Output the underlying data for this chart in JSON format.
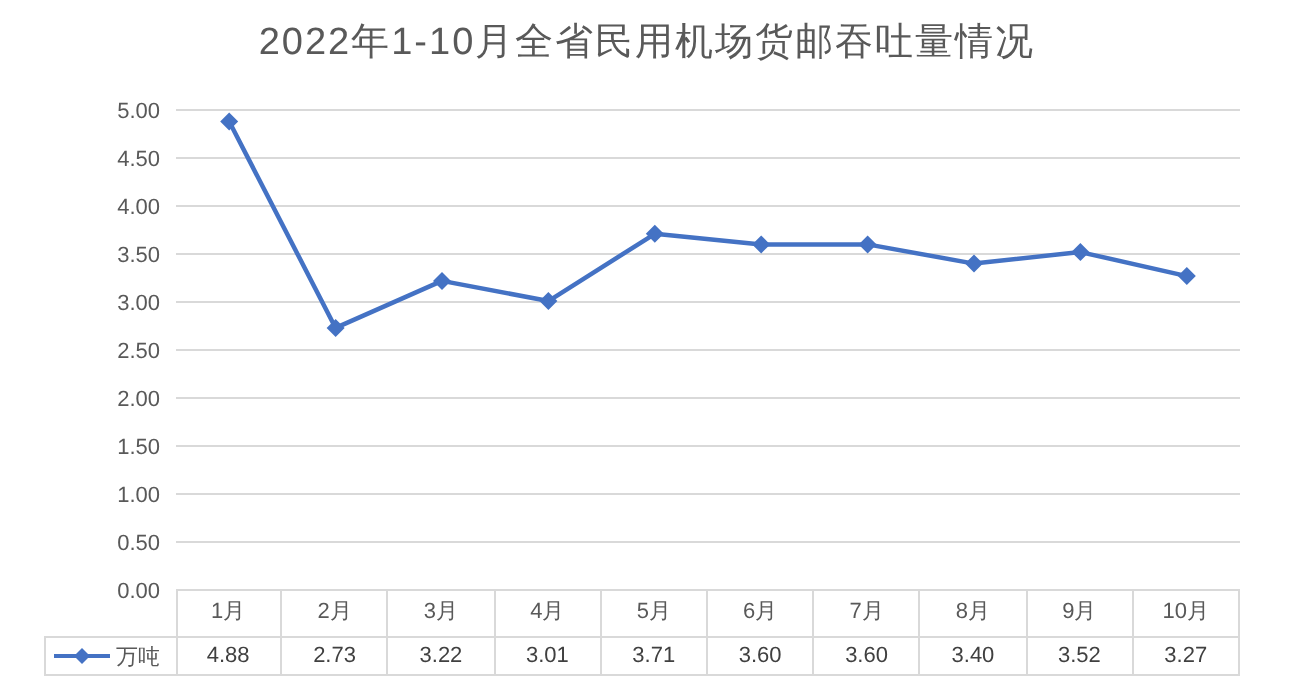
{
  "chart_data": {
    "type": "line",
    "title": "2022年1-10月全省民用机场货邮吞吐量情况",
    "categories": [
      "1月",
      "2月",
      "3月",
      "4月",
      "5月",
      "6月",
      "7月",
      "8月",
      "9月",
      "10月"
    ],
    "series": [
      {
        "name": "万吨",
        "color": "#4472c4",
        "values": [
          4.88,
          2.73,
          3.22,
          3.01,
          3.71,
          3.6,
          3.6,
          3.4,
          3.52,
          3.27
        ],
        "value_labels": [
          "4.88",
          "2.73",
          "3.22",
          "3.01",
          "3.71",
          "3.60",
          "3.60",
          "3.40",
          "3.52",
          "3.27"
        ]
      }
    ],
    "ylim": [
      0,
      5
    ],
    "yticks": [
      {
        "value": 0,
        "label": "0.00"
      },
      {
        "value": 0.5,
        "label": "0.50"
      },
      {
        "value": 1,
        "label": "1.00"
      },
      {
        "value": 1.5,
        "label": "1.50"
      },
      {
        "value": 2,
        "label": "2.00"
      },
      {
        "value": 2.5,
        "label": "2.50"
      },
      {
        "value": 3,
        "label": "3.00"
      },
      {
        "value": 3.5,
        "label": "3.50"
      },
      {
        "value": 4,
        "label": "4.00"
      },
      {
        "value": 4.5,
        "label": "4.50"
      },
      {
        "value": 5,
        "label": "5.00"
      }
    ],
    "grid": "y",
    "legend": "bottom",
    "marker": "diamond",
    "line_style": "solid"
  }
}
